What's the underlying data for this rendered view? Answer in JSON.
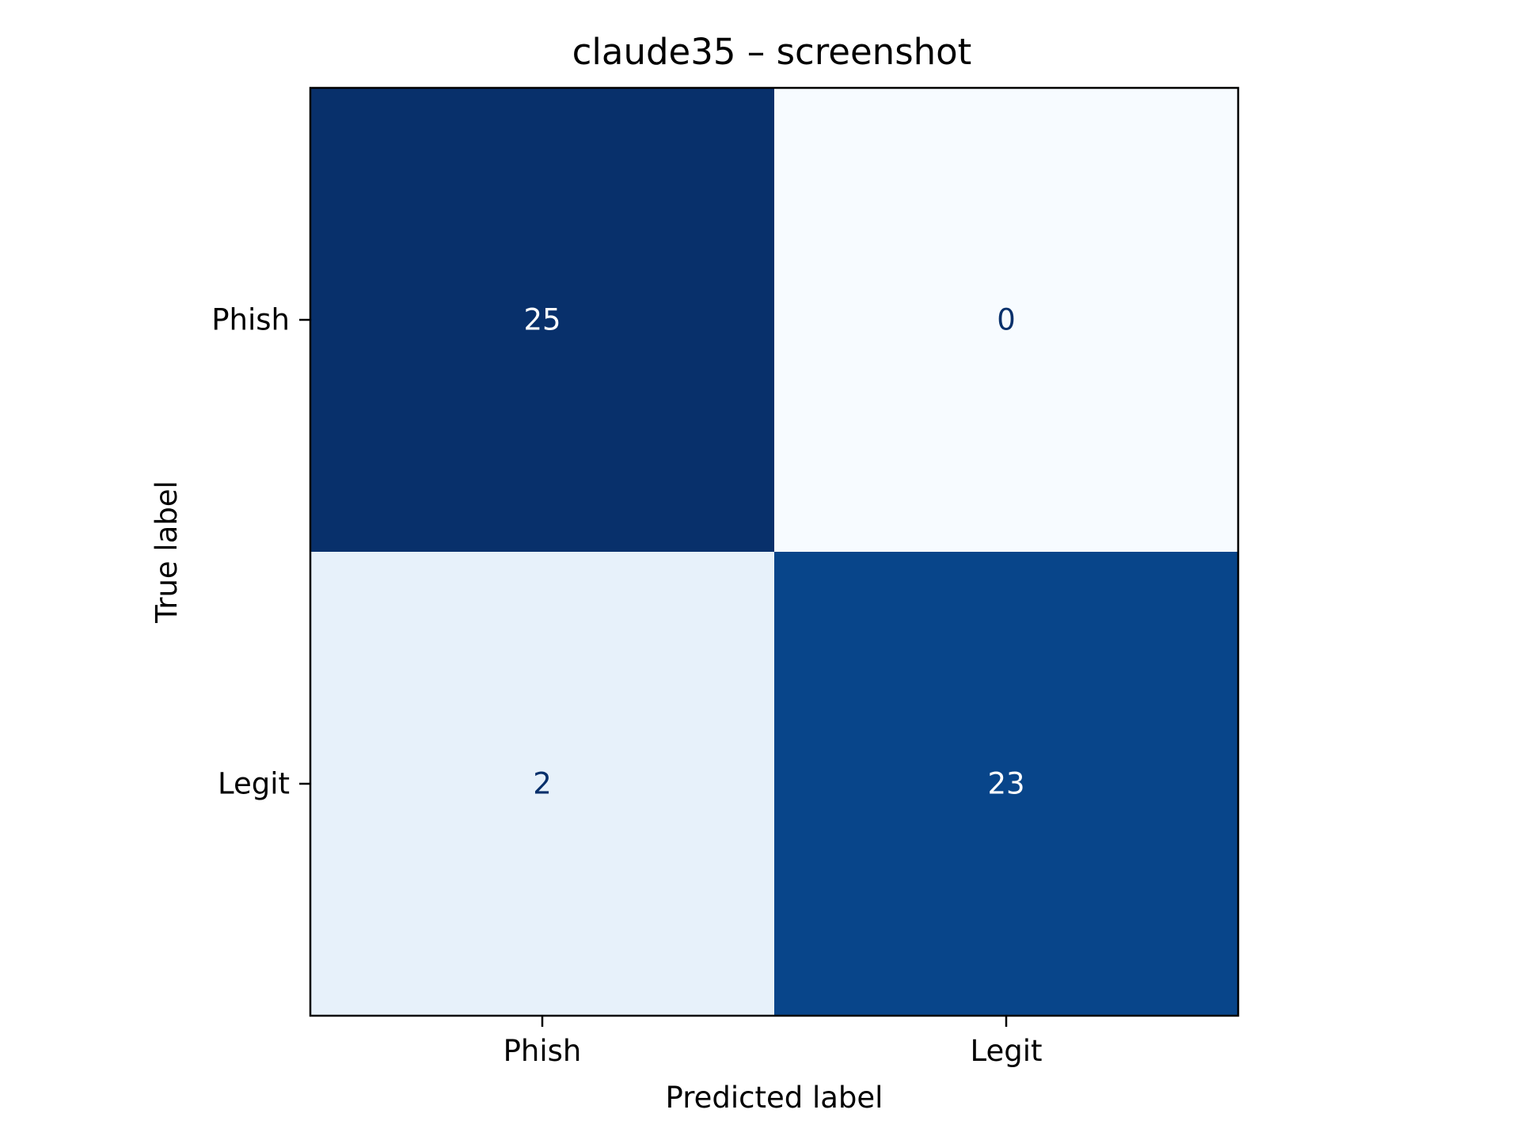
{
  "chart_data": {
    "type": "heatmap",
    "title": "claude35 – screenshot",
    "xlabel": "Predicted label",
    "ylabel": "True label",
    "x_categories": [
      "Phish",
      "Legit"
    ],
    "y_categories": [
      "Phish",
      "Legit"
    ],
    "matrix": [
      [
        25,
        0
      ],
      [
        2,
        23
      ]
    ],
    "value_range": [
      0,
      25
    ],
    "colormap": "Blues",
    "grid": false,
    "legend": "none",
    "colors": {
      "low": "#f7fbff",
      "high": "#08306b",
      "text_on_dark": "#ffffff",
      "text_on_light": "#08306b"
    }
  }
}
